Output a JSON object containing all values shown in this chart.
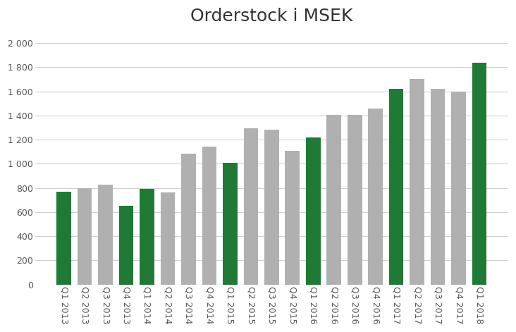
{
  "title": "Orderstock i MSEK",
  "categories": [
    "Q1 2013",
    "Q2 2013",
    "Q3 2013",
    "Q4 2013",
    "Q1 2014",
    "Q2 2014",
    "Q3 2014",
    "Q4 2014",
    "Q1 2015",
    "Q2 2015",
    "Q3 2015",
    "Q4 2015",
    "Q1 2016",
    "Q2 2016",
    "Q3 2016",
    "Q4 2016",
    "Q1 2017",
    "Q2 2017",
    "Q3 2017",
    "Q4 2017",
    "Q1 2018"
  ],
  "values": [
    770,
    800,
    825,
    650,
    790,
    760,
    1085,
    1140,
    1010,
    1295,
    1285,
    1110,
    1220,
    1405,
    1405,
    1460,
    1620,
    1705,
    1620,
    1600,
    1840
  ],
  "bar_colors": [
    "#1e7a34",
    "#b0b0b0",
    "#b0b0b0",
    "#1e7a34",
    "#1e7a34",
    "#b0b0b0",
    "#b0b0b0",
    "#b0b0b0",
    "#1e7a34",
    "#b0b0b0",
    "#b0b0b0",
    "#b0b0b0",
    "#1e7a34",
    "#b0b0b0",
    "#b0b0b0",
    "#b0b0b0",
    "#1e7a34",
    "#b0b0b0",
    "#b0b0b0",
    "#b0b0b0",
    "#1e7a34"
  ],
  "ylim": [
    0,
    2100
  ],
  "yticks": [
    0,
    200,
    400,
    600,
    800,
    1000,
    1200,
    1400,
    1600,
    1800,
    2000
  ],
  "ytick_labels": [
    "0",
    "200",
    "400",
    "600",
    "800",
    "1 000",
    "1 200",
    "1 400",
    "1 600",
    "1 800",
    "2 000"
  ],
  "background_color": "#ffffff",
  "grid_color": "#d0d0d0",
  "title_fontsize": 18,
  "tick_fontsize": 9,
  "bar_width": 0.7
}
